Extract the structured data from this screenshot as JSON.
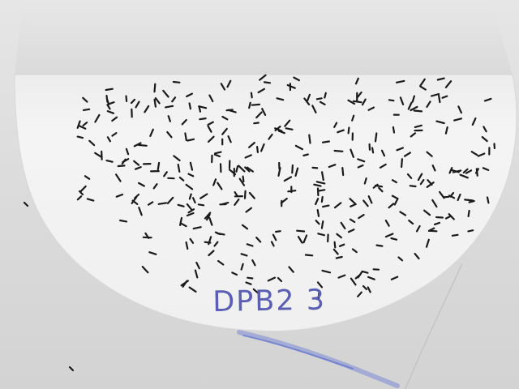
{
  "photo": {
    "label_text": "DPB2 3",
    "colors": {
      "background": "#d9d9d9",
      "paper": "#f3f3f3",
      "paper_shadow": "#e9e9e9",
      "seed": "#1a1a1a",
      "ink": "#5b5fb4",
      "ink_smear": "#4a62d8"
    }
  }
}
